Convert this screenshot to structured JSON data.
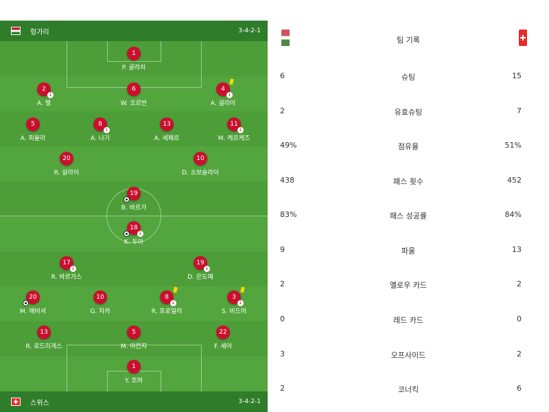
{
  "home": {
    "name": "헝가리",
    "formation": "3-4-2-1",
    "flag": "hungary-flag-icon"
  },
  "away": {
    "name": "스위스",
    "formation": "3-4-2-1",
    "flag": "switzerland-flag-icon"
  },
  "players": {
    "home": [
      {
        "num": "1",
        "name": "P. 굴라치"
      },
      {
        "num": "2",
        "name": "A. 랭"
      },
      {
        "num": "6",
        "name": "W. 오르반"
      },
      {
        "num": "4",
        "name": "A. 설라이"
      },
      {
        "num": "5",
        "name": "A. 피올라"
      },
      {
        "num": "8",
        "name": "A. 나기"
      },
      {
        "num": "13",
        "name": "A. 세페르"
      },
      {
        "num": "11",
        "name": "M. 케르케즈"
      },
      {
        "num": "20",
        "name": "R. 살라이"
      },
      {
        "num": "10",
        "name": "D. 소보슬라이"
      },
      {
        "num": "19",
        "name": "B. 바르가"
      }
    ],
    "away": [
      {
        "num": "18",
        "name": "K. 두아"
      },
      {
        "num": "17",
        "name": "R. 바르가스"
      },
      {
        "num": "19",
        "name": "D. 은도예"
      },
      {
        "num": "20",
        "name": "M. 에비셔"
      },
      {
        "num": "10",
        "name": "G. 자카"
      },
      {
        "num": "8",
        "name": "R. 프로일러"
      },
      {
        "num": "3",
        "name": "S. 비드머"
      },
      {
        "num": "13",
        "name": "R. 로드리게스"
      },
      {
        "num": "5",
        "name": "M. 아칸지"
      },
      {
        "num": "22",
        "name": "F. 셰어"
      },
      {
        "num": "1",
        "name": "Y. 조머"
      }
    ]
  },
  "stats": {
    "title": "팀 기록",
    "rows": [
      {
        "label": "슈팅",
        "home": "6",
        "away": "15"
      },
      {
        "label": "유효슈팅",
        "home": "2",
        "away": "7"
      },
      {
        "label": "점유율",
        "home": "49%",
        "away": "51%"
      },
      {
        "label": "패스 횟수",
        "home": "438",
        "away": "452"
      },
      {
        "label": "패스 성공률",
        "home": "83%",
        "away": "84%"
      },
      {
        "label": "파울",
        "home": "9",
        "away": "13"
      },
      {
        "label": "옐로우 카드",
        "home": "2",
        "away": "2"
      },
      {
        "label": "레드 카드",
        "home": "0",
        "away": "0"
      },
      {
        "label": "오프사이드",
        "home": "3",
        "away": "2"
      },
      {
        "label": "코너킥",
        "home": "2",
        "away": "6"
      }
    ]
  }
}
